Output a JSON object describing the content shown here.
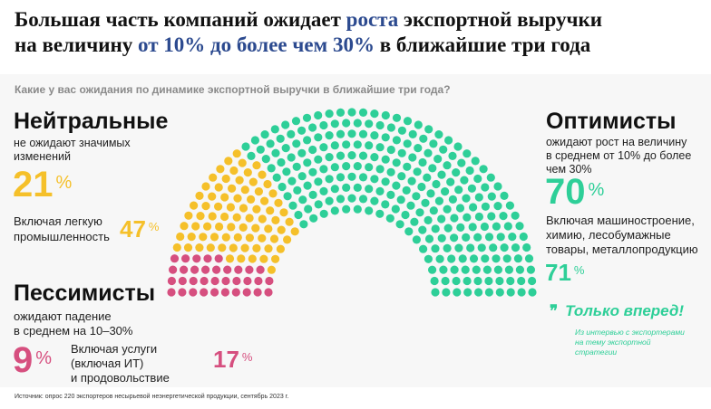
{
  "title": {
    "part1": "Большая часть компаний ожидает ",
    "hl1": "роста",
    "part2": " экспортной выручки",
    "part3": "на величину ",
    "hl2": "от 10% до более чем 30%",
    "part4": " в ближайшие три года"
  },
  "question": "Какие у вас ожидания по динамике экспортной выручки в ближайшие три года?",
  "neutral": {
    "heading": "Нейтральные",
    "sub1": "не ожидают значимых",
    "sub2": "изменений",
    "value": "21",
    "note1": "Включая легкую",
    "note2": "промышленность",
    "sector_value": "47",
    "pct": "%"
  },
  "pessimists": {
    "heading": "Пессимисты",
    "sub1": "ожидают падение",
    "sub2": "в среднем на 10–30%",
    "value": "9",
    "note1": "Включая услуги",
    "note2": "(включая ИТ)",
    "note3": "и продовольствие",
    "sector_value": "17",
    "pct": "%"
  },
  "optimists": {
    "heading": "Оптимисты",
    "sub1": "ожидают рост на величину",
    "sub2": "в среднем от 10% до более",
    "sub3": "чем 30%",
    "value": "70",
    "note1": "Включая машиностроение,",
    "note2": "химию, лесобумажные",
    "note3": "товары, металлопродукцию",
    "sector_value": "71",
    "pct": "%"
  },
  "quote": {
    "mark": "❞",
    "text": "Только вперед!",
    "src1": "Из интервью с экспортерами",
    "src2": "на тему экспортной",
    "src3": "стратегии"
  },
  "source": "Источник: опрос 220 экспортеров несырьевой неэнергетической продукции, сентябрь 2023 г.",
  "chart_data": {
    "type": "parliament",
    "categories": [
      "Пессимисты",
      "Нейтральные",
      "Оптимисты"
    ],
    "values": [
      9,
      21,
      70
    ],
    "colors": [
      "#d64f7f",
      "#f5c02a",
      "#2ecf98"
    ],
    "unit": "%"
  }
}
